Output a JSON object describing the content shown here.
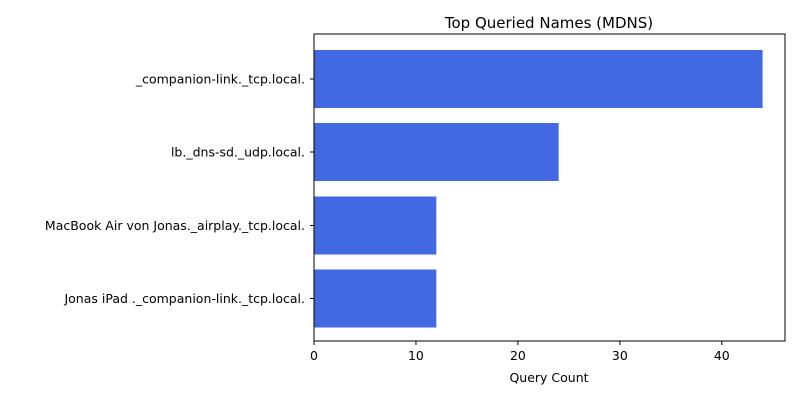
{
  "chart_data": {
    "type": "bar",
    "orientation": "horizontal",
    "title": "Top Queried Names (MDNS)",
    "xlabel": "Query Count",
    "ylabel": "",
    "categories": [
      "_companion-link._tcp.local.",
      "lb._dns-sd._udp.local.",
      "MacBook Air von Jonas._airplay._tcp.local.",
      "Jonas iPad ._companion-link._tcp.local."
    ],
    "values": [
      44,
      24,
      12,
      12
    ],
    "xlim": [
      0,
      46.2
    ],
    "xticks": [
      0,
      10,
      20,
      30,
      40
    ],
    "grid": false,
    "legend": "none",
    "bar_color": "#4169e1"
  }
}
